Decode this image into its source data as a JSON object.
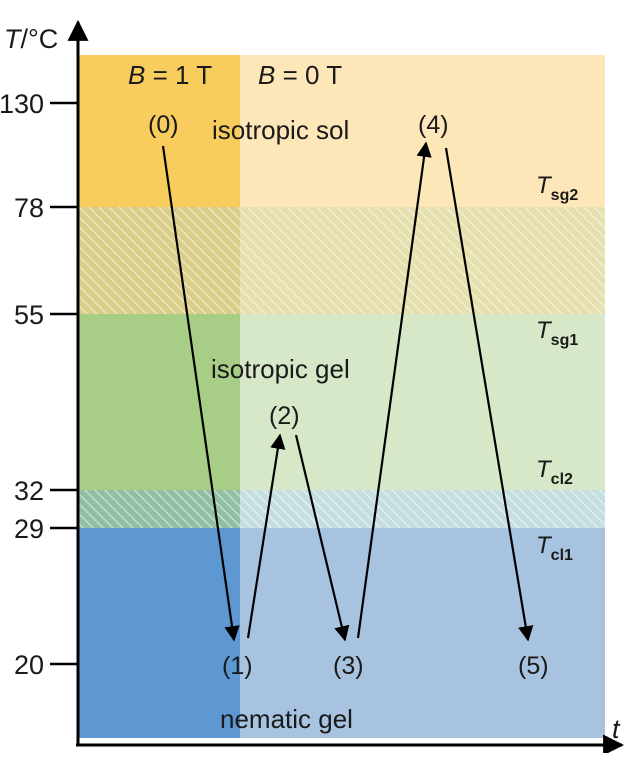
{
  "axes": {
    "y_label_var": "T",
    "y_label_unit": "/°C",
    "x_label": "t",
    "ticks": [
      "130",
      "78",
      "55",
      "32",
      "29",
      "20"
    ]
  },
  "field_labels": {
    "magnetic_on": {
      "var": "B",
      "value": " = 1 T"
    },
    "magnetic_off": {
      "var": "B",
      "value": " = 0 T"
    }
  },
  "regions": {
    "isotropic_sol": "isotropic sol",
    "isotropic_gel": "isotropic gel",
    "nematic_gel": "nematic gel"
  },
  "transitions": [
    {
      "main": "T",
      "sub": "sg2"
    },
    {
      "main": "T",
      "sub": "sg1"
    },
    {
      "main": "T",
      "sub": "cl2"
    },
    {
      "main": "T",
      "sub": "cl1"
    }
  ],
  "states": [
    "(0)",
    "(1)",
    "(2)",
    "(3)",
    "(4)",
    "(5)"
  ],
  "colors": {
    "sol_field": "#f9cc5e",
    "sol_nofield": "#fde6b8",
    "gel_field": "#a8cd86",
    "gel_nofield": "#d7e8c9",
    "nem_field": "#5e98d2",
    "nem_nofield": "#a7c3e0",
    "biphasic_high": "#e6dfae",
    "biphasic_low": "#c5dfe0",
    "hatch": "#ffffff",
    "axis": "#000000"
  }
}
